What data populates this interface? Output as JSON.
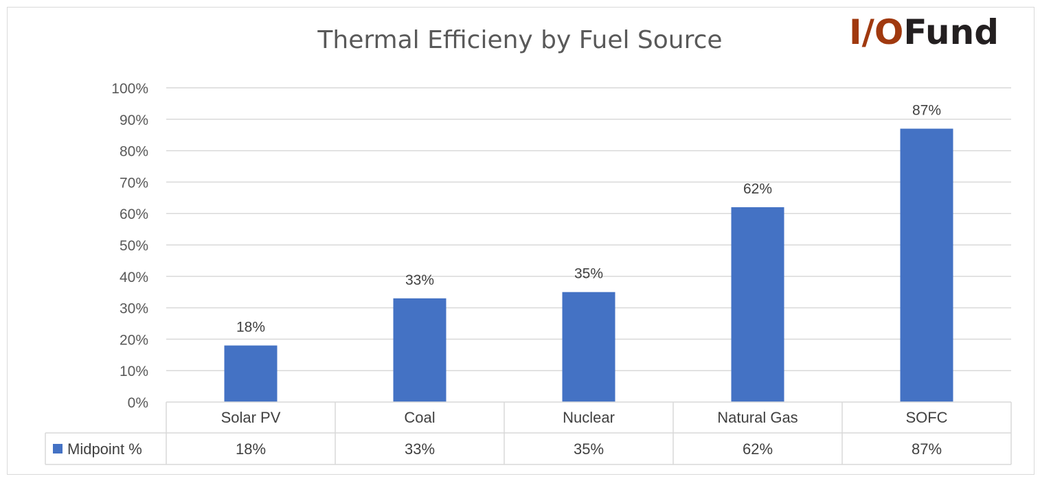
{
  "logo": {
    "part1": "I/O",
    "part2": "Fund",
    "accent": "#a0390f",
    "dark": "#231f20"
  },
  "chart_data": {
    "type": "bar",
    "title": "Thermal Efficieny by Fuel Source",
    "categories": [
      "Solar PV",
      "Coal",
      "Nuclear",
      "Natural Gas",
      "SOFC"
    ],
    "series": [
      {
        "name": "Midpoint %",
        "values": [
          18,
          33,
          35,
          62,
          87
        ],
        "color": "#4472c4"
      }
    ],
    "data_labels": [
      "18%",
      "33%",
      "35%",
      "62%",
      "87%"
    ],
    "yticks": [
      "0%",
      "10%",
      "20%",
      "30%",
      "40%",
      "50%",
      "60%",
      "70%",
      "80%",
      "90%",
      "100%"
    ],
    "ylim": [
      0,
      100
    ],
    "grid": true,
    "legend": "data table below chart",
    "table_values": [
      "18%",
      "33%",
      "35%",
      "62%",
      "87%"
    ]
  }
}
